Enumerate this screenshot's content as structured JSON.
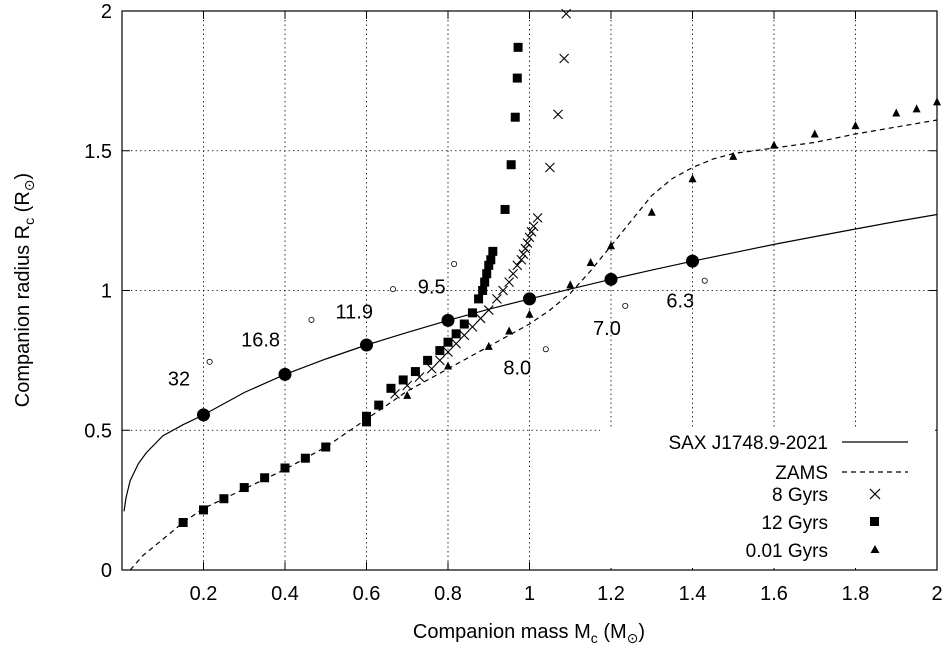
{
  "chart_data": {
    "type": "scatter",
    "xlabel_main": "Companion mass M",
    "xlabel_sub": "c",
    "xlabel_unit_open": " (M",
    "xlabel_unit_sub": "⊙",
    "xlabel_unit_close": ")",
    "ylabel_main": "Companion radius R",
    "ylabel_sub": "c",
    "ylabel_unit_open": " (R",
    "ylabel_unit_sub": "⊙",
    "ylabel_unit_close": ")",
    "xlim": [
      0,
      2
    ],
    "ylim": [
      0,
      2
    ],
    "x_ticks": [
      0.2,
      0.4,
      0.6,
      0.8,
      1.0,
      1.2,
      1.4,
      1.6,
      1.8,
      2.0
    ],
    "x_tick_labels": [
      "0.2",
      "0.4",
      "0.6",
      "0.8",
      "1",
      "1.2",
      "1.4",
      "1.6",
      "1.8",
      "2"
    ],
    "y_ticks": [
      0,
      0.5,
      1.0,
      1.5,
      2.0
    ],
    "y_tick_labels": [
      "0",
      "0.5",
      "1",
      "1.5",
      "2"
    ],
    "grid": true,
    "legend_position": "bottom-right",
    "series": [
      {
        "name": "SAX J1748.9-2021",
        "style": "solid-line",
        "x": [
          0.005,
          0.01,
          0.02,
          0.04,
          0.06,
          0.1,
          0.15,
          0.2,
          0.3,
          0.4,
          0.5,
          0.6,
          0.7,
          0.8,
          0.9,
          1.0,
          1.1,
          1.2,
          1.3,
          1.4,
          1.5,
          1.6,
          1.7,
          1.8,
          1.9,
          2.0
        ],
        "y": [
          0.21,
          0.26,
          0.32,
          0.38,
          0.42,
          0.48,
          0.52,
          0.555,
          0.635,
          0.7,
          0.755,
          0.805,
          0.85,
          0.893,
          0.933,
          0.97,
          1.005,
          1.04,
          1.073,
          1.105,
          1.135,
          1.165,
          1.193,
          1.22,
          1.247,
          1.272
        ]
      },
      {
        "name": "ZAMS",
        "style": "dashed-line",
        "x": [
          0.02,
          0.05,
          0.1,
          0.15,
          0.2,
          0.3,
          0.4,
          0.5,
          0.6,
          0.7,
          0.8,
          0.9,
          1.0,
          1.05,
          1.1,
          1.15,
          1.2,
          1.25,
          1.3,
          1.35,
          1.4,
          1.45,
          1.5,
          1.55,
          1.6,
          1.7,
          1.8,
          1.9,
          2.0
        ],
        "y": [
          0.0,
          0.05,
          0.11,
          0.17,
          0.22,
          0.29,
          0.36,
          0.44,
          0.54,
          0.64,
          0.72,
          0.8,
          0.88,
          0.93,
          0.99,
          1.07,
          1.16,
          1.25,
          1.34,
          1.4,
          1.44,
          1.47,
          1.49,
          1.5,
          1.51,
          1.53,
          1.56,
          1.585,
          1.61
        ]
      },
      {
        "name": "8 Gyrs",
        "marker": "cross",
        "x": [
          0.67,
          0.7,
          0.73,
          0.76,
          0.78,
          0.8,
          0.82,
          0.84,
          0.86,
          0.88,
          0.9,
          0.92,
          0.935,
          0.95,
          0.96,
          0.97,
          0.98,
          0.985,
          0.99,
          0.995,
          1.0,
          1.005,
          1.01,
          1.02,
          1.05,
          1.07,
          1.085,
          1.09
        ],
        "y": [
          0.63,
          0.66,
          0.69,
          0.72,
          0.75,
          0.78,
          0.81,
          0.84,
          0.87,
          0.9,
          0.93,
          0.97,
          1.0,
          1.03,
          1.06,
          1.09,
          1.11,
          1.13,
          1.15,
          1.17,
          1.19,
          1.21,
          1.23,
          1.26,
          1.44,
          1.63,
          1.83,
          1.99
        ]
      },
      {
        "name": "12 Gyrs",
        "marker": "square",
        "x": [
          0.15,
          0.2,
          0.25,
          0.3,
          0.35,
          0.4,
          0.45,
          0.5,
          0.6,
          0.6,
          0.63,
          0.66,
          0.69,
          0.72,
          0.75,
          0.78,
          0.8,
          0.82,
          0.84,
          0.86,
          0.875,
          0.885,
          0.89,
          0.895,
          0.9,
          0.905,
          0.91,
          0.94,
          0.955,
          0.965,
          0.97,
          0.972
        ],
        "y": [
          0.17,
          0.215,
          0.255,
          0.295,
          0.33,
          0.365,
          0.4,
          0.44,
          0.53,
          0.55,
          0.59,
          0.65,
          0.68,
          0.71,
          0.75,
          0.785,
          0.815,
          0.845,
          0.88,
          0.92,
          0.97,
          1.0,
          1.03,
          1.06,
          1.09,
          1.11,
          1.14,
          1.29,
          1.45,
          1.62,
          1.76,
          1.87
        ]
      },
      {
        "name": "0.01 Gyrs",
        "marker": "triangle",
        "x": [
          0.6,
          0.7,
          0.8,
          0.9,
          0.95,
          1.0,
          1.1,
          1.15,
          1.2,
          1.3,
          1.4,
          1.5,
          1.6,
          1.7,
          1.8,
          1.9,
          1.95,
          2.0
        ],
        "y": [
          0.53,
          0.625,
          0.73,
          0.8,
          0.855,
          0.915,
          1.02,
          1.1,
          1.16,
          1.28,
          1.4,
          1.48,
          1.52,
          1.56,
          1.59,
          1.635,
          1.65,
          1.675
        ]
      }
    ],
    "points": {
      "name": "circles",
      "x": [
        0.2,
        0.4,
        0.6,
        0.8,
        1.0,
        1.2,
        1.4
      ],
      "y": [
        0.555,
        0.7,
        0.805,
        0.893,
        0.97,
        1.04,
        1.105
      ]
    },
    "annotations": [
      {
        "text": "32",
        "x": 0.14,
        "y": 0.66
      },
      {
        "text": "16.8",
        "x": 0.34,
        "y": 0.8
      },
      {
        "text": "11.9",
        "x": 0.57,
        "y": 0.9
      },
      {
        "text": "9.5",
        "x": 0.76,
        "y": 0.99
      },
      {
        "text": "8.0",
        "x": 0.97,
        "y": 0.7
      },
      {
        "text": "7.0",
        "x": 1.19,
        "y": 0.84
      },
      {
        "text": "6.3",
        "x": 1.37,
        "y": 0.94
      }
    ],
    "small_circles": {
      "x": [
        0.215,
        0.465,
        0.665,
        0.815,
        1.04,
        1.235,
        1.43
      ],
      "y": [
        0.745,
        0.895,
        1.005,
        1.095,
        0.79,
        0.945,
        1.035
      ]
    }
  }
}
